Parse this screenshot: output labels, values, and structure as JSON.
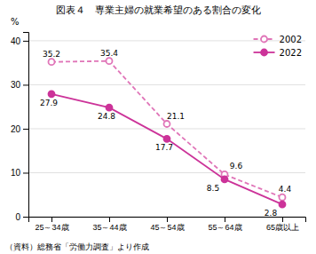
{
  "chart_data": {
    "type": "line",
    "title": "図表４　専業主婦の就業希望のある割合の変化",
    "ylabel": "%",
    "source": "（資料）総務省「労働力調査」より作成",
    "categories": [
      "25～34歳",
      "35～44歳",
      "45～54歳",
      "55～64歳",
      "65歳以上"
    ],
    "series": [
      {
        "name": "2002",
        "color": "#e075b8",
        "line_style": "dashed",
        "marker": "open-circle",
        "values": [
          35.2,
          35.4,
          21.1,
          9.6,
          4.4
        ]
      },
      {
        "name": "2022",
        "color": "#cc3399",
        "line_style": "solid",
        "marker": "circle",
        "values": [
          27.9,
          24.8,
          17.7,
          8.5,
          2.8
        ]
      }
    ],
    "ylim": [
      0,
      42
    ],
    "yticks": [
      0,
      10,
      20,
      30,
      40
    ],
    "grid": true,
    "legend": "upper-right",
    "data_labels": true
  }
}
